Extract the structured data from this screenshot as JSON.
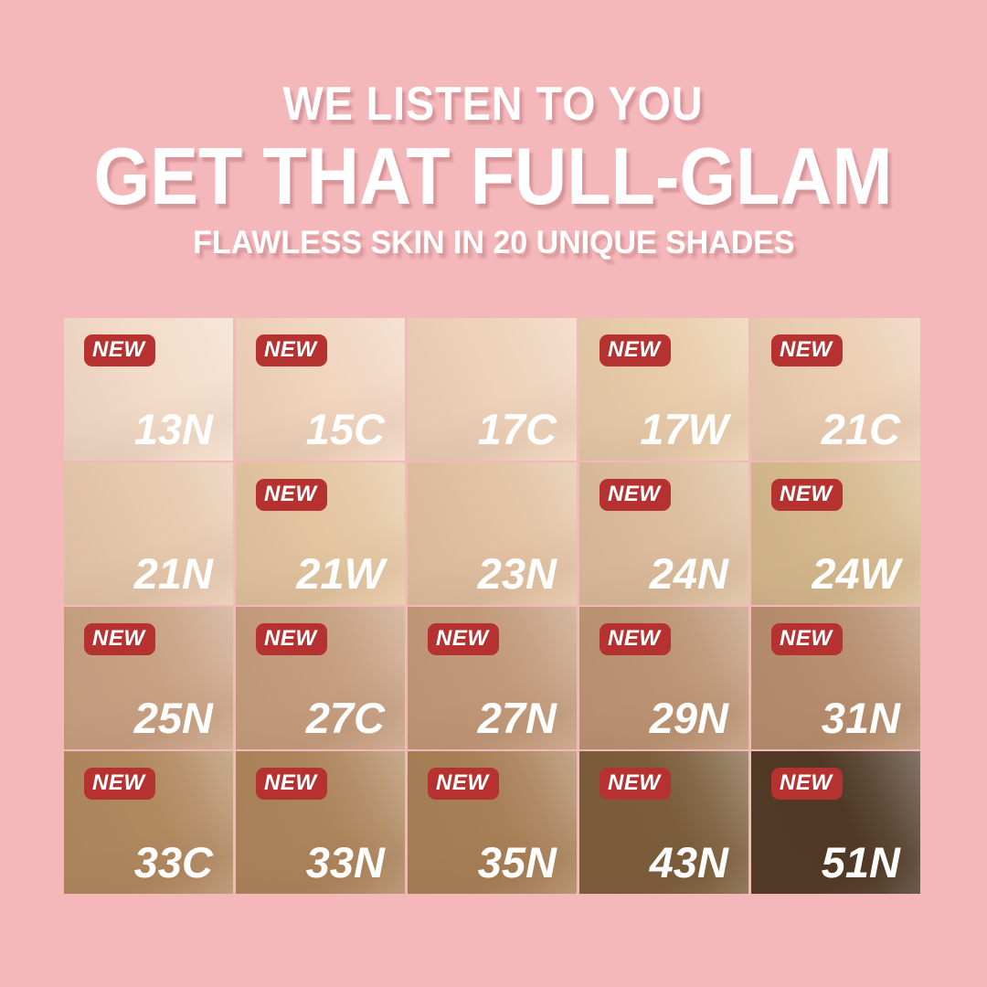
{
  "header": {
    "line1": "WE LISTEN TO YOU",
    "line2": "GET THAT FULL-GLAM",
    "line3": "FLAWLESS SKIN IN 20 UNIQUE SHADES"
  },
  "badge": {
    "label": "NEW",
    "bg": "#b53231",
    "text_color": "#ffffff"
  },
  "colors": {
    "background": "#f4b7ba",
    "header_text": "#ffffff",
    "shade_label": "#ffffff"
  },
  "shades": [
    {
      "name": "13N",
      "new": true,
      "color": "#f3dcc9"
    },
    {
      "name": "15C",
      "new": true,
      "color": "#f1d5bf"
    },
    {
      "name": "17C",
      "new": false,
      "color": "#eed2ba"
    },
    {
      "name": "17W",
      "new": true,
      "color": "#e9cdab"
    },
    {
      "name": "21C",
      "new": true,
      "color": "#ebceb3"
    },
    {
      "name": "21N",
      "new": false,
      "color": "#e7c9ae"
    },
    {
      "name": "21W",
      "new": true,
      "color": "#e4c6a1"
    },
    {
      "name": "23N",
      "new": false,
      "color": "#e2c2a2"
    },
    {
      "name": "24N",
      "new": true,
      "color": "#dcbe9e"
    },
    {
      "name": "24W",
      "new": true,
      "color": "#d6ba8e"
    },
    {
      "name": "25N",
      "new": true,
      "color": "#c9a284"
    },
    {
      "name": "27C",
      "new": true,
      "color": "#c69e7f"
    },
    {
      "name": "27N",
      "new": true,
      "color": "#c29a7a"
    },
    {
      "name": "29N",
      "new": true,
      "color": "#bc9574"
    },
    {
      "name": "31N",
      "new": true,
      "color": "#b78f6f"
    },
    {
      "name": "33C",
      "new": true,
      "color": "#b1895f"
    },
    {
      "name": "33N",
      "new": true,
      "color": "#ad855c"
    },
    {
      "name": "35N",
      "new": true,
      "color": "#a88057"
    },
    {
      "name": "43N",
      "new": true,
      "color": "#7b5d3b"
    },
    {
      "name": "51N",
      "new": true,
      "color": "#4f3925"
    }
  ]
}
